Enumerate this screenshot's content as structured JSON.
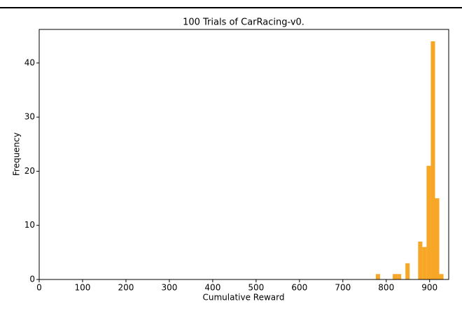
{
  "chart_data": {
    "type": "histogram",
    "title": "100 Trials of CarRacing-v0.",
    "x_label": "Cumulative Reward",
    "y_label": "Frequency",
    "bins": [
      776,
      785.75,
      795.5,
      805.25,
      815,
      824.75,
      834.5,
      844.25,
      854,
      863.75,
      873.5,
      883.25,
      893,
      902.75,
      912.5,
      922.25,
      932
    ],
    "values": [
      1,
      0,
      0,
      0,
      1,
      1,
      0,
      3,
      0,
      0,
      7,
      6,
      21,
      44,
      15,
      1
    ],
    "color": "#f7a625",
    "xlim": [
      0,
      944
    ],
    "xticks": [
      0,
      100,
      200,
      300,
      400,
      500,
      600,
      700,
      800,
      900
    ],
    "ylim": [
      0,
      46.2
    ],
    "yticks": [
      0,
      10,
      20,
      30,
      40
    ]
  }
}
